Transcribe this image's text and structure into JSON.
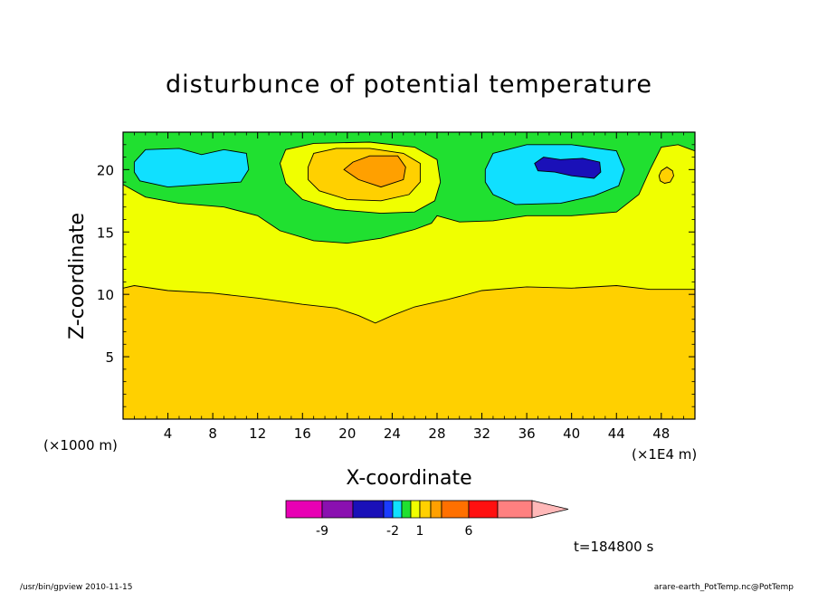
{
  "chart_data": {
    "type": "heatmap",
    "title": "disturbunce of potential temperature",
    "xlabel": "X-coordinate",
    "ylabel": "Z-coordinate",
    "x_unit_left": "(×1000 m)",
    "x_unit_right": "(×1E4 m)",
    "xlim": [
      0,
      51
    ],
    "ylim": [
      0,
      23
    ],
    "x_ticks": [
      "4",
      "8",
      "12",
      "16",
      "20",
      "24",
      "28",
      "32",
      "36",
      "40",
      "44",
      "48"
    ],
    "x_tick_values": [
      4,
      8,
      12,
      16,
      20,
      24,
      28,
      32,
      36,
      40,
      44,
      48
    ],
    "y_ticks": [
      "5",
      "10",
      "15",
      "20"
    ],
    "y_tick_values": [
      5,
      10,
      15,
      20
    ],
    "grid": false,
    "time_label": "t=184800 s",
    "colorbar": {
      "colors": [
        "#e800b4",
        "#8a10b0",
        "#1a10b8",
        "#1a3cff",
        "#10e0ff",
        "#20e030",
        "#f0ff00",
        "#ffd000",
        "#ffa000",
        "#ff7000",
        "#ff1010",
        "#ff8080",
        "#ffb8b8"
      ],
      "tick_labels": [
        "-9",
        "-2",
        "1",
        "6"
      ],
      "tick_values": [
        -9,
        -2,
        1,
        6
      ]
    },
    "regions": [
      {
        "fill": "#ffd000",
        "polygon": [
          [
            0,
            0
          ],
          [
            51,
            0
          ],
          [
            51,
            10.4
          ],
          [
            47,
            10.4
          ],
          [
            44,
            10.7
          ],
          [
            40,
            10.5
          ],
          [
            36,
            10.6
          ],
          [
            32,
            10.3
          ],
          [
            29,
            9.6
          ],
          [
            26,
            9.0
          ],
          [
            24,
            8.3
          ],
          [
            22.5,
            7.7
          ],
          [
            21,
            8.3
          ],
          [
            19,
            8.9
          ],
          [
            16,
            9.2
          ],
          [
            12,
            9.7
          ],
          [
            8,
            10.1
          ],
          [
            4,
            10.3
          ],
          [
            1,
            10.7
          ],
          [
            0,
            10.5
          ]
        ]
      },
      {
        "fill": "#f0ff00",
        "polygon": [
          [
            0,
            10.5
          ],
          [
            1,
            10.7
          ],
          [
            4,
            10.3
          ],
          [
            8,
            10.1
          ],
          [
            12,
            9.7
          ],
          [
            16,
            9.2
          ],
          [
            19,
            8.9
          ],
          [
            21,
            8.3
          ],
          [
            22.5,
            7.7
          ],
          [
            24,
            8.3
          ],
          [
            26,
            9.0
          ],
          [
            29,
            9.6
          ],
          [
            32,
            10.3
          ],
          [
            36,
            10.6
          ],
          [
            40,
            10.5
          ],
          [
            44,
            10.7
          ],
          [
            47,
            10.4
          ],
          [
            51,
            10.4
          ],
          [
            51,
            23
          ],
          [
            0,
            23
          ]
        ]
      },
      {
        "fill": "#20e030",
        "polygon": [
          [
            0,
            18.8
          ],
          [
            2,
            17.8
          ],
          [
            5,
            17.3
          ],
          [
            9,
            17.0
          ],
          [
            12,
            16.3
          ],
          [
            14,
            15.1
          ],
          [
            17,
            14.3
          ],
          [
            20,
            14.1
          ],
          [
            23,
            14.5
          ],
          [
            26,
            15.2
          ],
          [
            27.5,
            15.7
          ],
          [
            28,
            16.3
          ],
          [
            30,
            15.8
          ],
          [
            33,
            15.9
          ],
          [
            36,
            16.3
          ],
          [
            40,
            16.3
          ],
          [
            44,
            16.6
          ],
          [
            46,
            18.0
          ],
          [
            47,
            20.0
          ],
          [
            48,
            21.8
          ],
          [
            49.5,
            22.0
          ],
          [
            51,
            21.5
          ],
          [
            51,
            23
          ],
          [
            0,
            23
          ]
        ]
      },
      {
        "fill": "#f0ff00",
        "polygon": [
          [
            14,
            20.5
          ],
          [
            14.5,
            21.6
          ],
          [
            17,
            22.1
          ],
          [
            22,
            22.2
          ],
          [
            26,
            21.8
          ],
          [
            28,
            20.8
          ],
          [
            28.3,
            19.0
          ],
          [
            27.8,
            17.5
          ],
          [
            26,
            16.6
          ],
          [
            23,
            16.5
          ],
          [
            19,
            16.8
          ],
          [
            16,
            17.6
          ],
          [
            14.5,
            18.9
          ]
        ]
      },
      {
        "fill": "#ffd000",
        "polygon": [
          [
            16.5,
            20.2
          ],
          [
            17,
            21.3
          ],
          [
            19,
            21.7
          ],
          [
            22,
            21.7
          ],
          [
            25,
            21.3
          ],
          [
            26.5,
            20.5
          ],
          [
            26.5,
            19.0
          ],
          [
            25.5,
            18.0
          ],
          [
            23,
            17.5
          ],
          [
            20,
            17.6
          ],
          [
            17.5,
            18.3
          ],
          [
            16.5,
            19.2
          ]
        ]
      },
      {
        "fill": "#ffa000",
        "polygon": [
          [
            19.7,
            20.0
          ],
          [
            20.5,
            20.6
          ],
          [
            22,
            21.1
          ],
          [
            24.5,
            21.1
          ],
          [
            25.2,
            20.2
          ],
          [
            25,
            19.2
          ],
          [
            23,
            18.6
          ],
          [
            21,
            19.2
          ]
        ]
      },
      {
        "fill": "#10e0ff",
        "polygon": [
          [
            1,
            20.6
          ],
          [
            2,
            21.6
          ],
          [
            5,
            21.7
          ],
          [
            7,
            21.2
          ],
          [
            9,
            21.6
          ],
          [
            11,
            21.3
          ],
          [
            11.2,
            20.0
          ],
          [
            10.5,
            19.0
          ],
          [
            7,
            18.8
          ],
          [
            4,
            18.6
          ],
          [
            1.5,
            19.1
          ],
          [
            1,
            19.8
          ]
        ]
      },
      {
        "fill": "#10e0ff",
        "polygon": [
          [
            32.3,
            20.0
          ],
          [
            33,
            21.3
          ],
          [
            36,
            22.0
          ],
          [
            40,
            22.0
          ],
          [
            44,
            21.5
          ],
          [
            44.7,
            20.0
          ],
          [
            44.2,
            18.7
          ],
          [
            42,
            17.9
          ],
          [
            39,
            17.3
          ],
          [
            35,
            17.2
          ],
          [
            33,
            18.0
          ],
          [
            32.3,
            19.0
          ]
        ]
      },
      {
        "fill": "#1a10b8",
        "polygon": [
          [
            36.7,
            20.5
          ],
          [
            37.5,
            21.0
          ],
          [
            39,
            20.8
          ],
          [
            41,
            20.9
          ],
          [
            42.5,
            20.6
          ],
          [
            42.6,
            19.8
          ],
          [
            42,
            19.3
          ],
          [
            40,
            19.5
          ],
          [
            38.5,
            19.8
          ],
          [
            37,
            19.9
          ]
        ]
      },
      {
        "fill": "#ffd000",
        "polygon": [
          [
            47.8,
            19.5
          ],
          [
            48,
            19.9
          ],
          [
            48.5,
            20.2
          ],
          [
            49,
            19.9
          ],
          [
            49.1,
            19.5
          ],
          [
            48.8,
            19.0
          ],
          [
            48.3,
            18.9
          ],
          [
            47.9,
            19.1
          ]
        ]
      }
    ],
    "contour_lines": [
      {
        "closed": false,
        "points": [
          [
            0,
            10.5
          ],
          [
            1,
            10.7
          ],
          [
            4,
            10.3
          ],
          [
            8,
            10.1
          ],
          [
            12,
            9.7
          ],
          [
            16,
            9.2
          ],
          [
            19,
            8.9
          ],
          [
            21,
            8.3
          ],
          [
            22.5,
            7.7
          ],
          [
            24,
            8.3
          ],
          [
            26,
            9.0
          ],
          [
            29,
            9.6
          ],
          [
            32,
            10.3
          ],
          [
            36,
            10.6
          ],
          [
            40,
            10.5
          ],
          [
            44,
            10.7
          ],
          [
            47,
            10.4
          ],
          [
            51,
            10.4
          ]
        ]
      },
      {
        "closed": false,
        "points": [
          [
            0,
            18.8
          ],
          [
            2,
            17.8
          ],
          [
            5,
            17.3
          ],
          [
            9,
            17.0
          ],
          [
            12,
            16.3
          ],
          [
            14,
            15.1
          ],
          [
            17,
            14.3
          ],
          [
            20,
            14.1
          ],
          [
            23,
            14.5
          ],
          [
            26,
            15.2
          ],
          [
            27.5,
            15.7
          ],
          [
            28,
            16.3
          ],
          [
            30,
            15.8
          ],
          [
            33,
            15.9
          ],
          [
            36,
            16.3
          ],
          [
            40,
            16.3
          ],
          [
            44,
            16.6
          ],
          [
            46,
            18.0
          ],
          [
            47,
            20.0
          ],
          [
            48,
            21.8
          ],
          [
            49.5,
            22.0
          ],
          [
            51,
            21.5
          ]
        ]
      },
      {
        "closed": true,
        "points": [
          [
            14,
            20.5
          ],
          [
            14.5,
            21.6
          ],
          [
            17,
            22.1
          ],
          [
            22,
            22.2
          ],
          [
            26,
            21.8
          ],
          [
            28,
            20.8
          ],
          [
            28.3,
            19.0
          ],
          [
            27.8,
            17.5
          ],
          [
            26,
            16.6
          ],
          [
            23,
            16.5
          ],
          [
            19,
            16.8
          ],
          [
            16,
            17.6
          ],
          [
            14.5,
            18.9
          ]
        ]
      },
      {
        "closed": true,
        "points": [
          [
            16.5,
            20.2
          ],
          [
            17,
            21.3
          ],
          [
            19,
            21.7
          ],
          [
            22,
            21.7
          ],
          [
            25,
            21.3
          ],
          [
            26.5,
            20.5
          ],
          [
            26.5,
            19.0
          ],
          [
            25.5,
            18.0
          ],
          [
            23,
            17.5
          ],
          [
            20,
            17.6
          ],
          [
            17.5,
            18.3
          ],
          [
            16.5,
            19.2
          ]
        ]
      },
      {
        "closed": true,
        "points": [
          [
            19.7,
            20.0
          ],
          [
            20.5,
            20.6
          ],
          [
            22,
            21.1
          ],
          [
            24.5,
            21.1
          ],
          [
            25.2,
            20.2
          ],
          [
            25,
            19.2
          ],
          [
            23,
            18.6
          ],
          [
            21,
            19.2
          ]
        ]
      },
      {
        "closed": true,
        "points": [
          [
            1,
            20.6
          ],
          [
            2,
            21.6
          ],
          [
            5,
            21.7
          ],
          [
            7,
            21.2
          ],
          [
            9,
            21.6
          ],
          [
            11,
            21.3
          ],
          [
            11.2,
            20.0
          ],
          [
            10.5,
            19.0
          ],
          [
            7,
            18.8
          ],
          [
            4,
            18.6
          ],
          [
            1.5,
            19.1
          ],
          [
            1,
            19.8
          ]
        ]
      },
      {
        "closed": true,
        "points": [
          [
            32.3,
            20.0
          ],
          [
            33,
            21.3
          ],
          [
            36,
            22.0
          ],
          [
            40,
            22.0
          ],
          [
            44,
            21.5
          ],
          [
            44.7,
            20.0
          ],
          [
            44.2,
            18.7
          ],
          [
            42,
            17.9
          ],
          [
            39,
            17.3
          ],
          [
            35,
            17.2
          ],
          [
            33,
            18.0
          ],
          [
            32.3,
            19.0
          ]
        ]
      },
      {
        "closed": true,
        "points": [
          [
            36.7,
            20.5
          ],
          [
            37.5,
            21.0
          ],
          [
            39,
            20.8
          ],
          [
            41,
            20.9
          ],
          [
            42.5,
            20.6
          ],
          [
            42.6,
            19.8
          ],
          [
            42,
            19.3
          ],
          [
            40,
            19.5
          ],
          [
            38.5,
            19.8
          ],
          [
            37,
            19.9
          ]
        ]
      },
      {
        "closed": true,
        "points": [
          [
            47.8,
            19.5
          ],
          [
            48,
            19.9
          ],
          [
            48.5,
            20.2
          ],
          [
            49,
            19.9
          ],
          [
            49.1,
            19.5
          ],
          [
            48.8,
            19.0
          ],
          [
            48.3,
            18.9
          ],
          [
            47.9,
            19.1
          ]
        ]
      }
    ]
  },
  "footer": {
    "left": "/usr/bin/gpview 2010-11-15",
    "right": "arare-earth_PotTemp.nc@PotTemp"
  }
}
